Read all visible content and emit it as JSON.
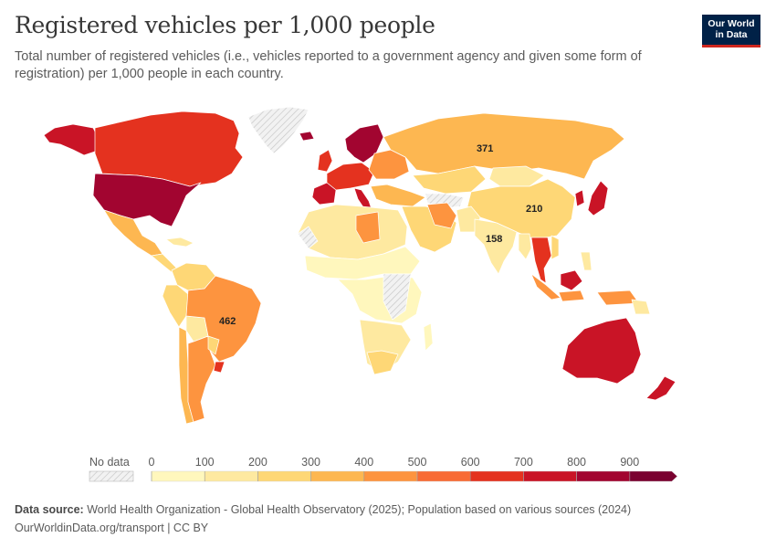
{
  "header": {
    "title": "Registered vehicles per 1,000 people",
    "subtitle": "Total number of registered vehicles (i.e., vehicles reported to a government agency and given some form of registration) per 1,000 people in each country."
  },
  "logo": {
    "line1": "Our World",
    "line2": "in Data"
  },
  "map": {
    "annotations": [
      {
        "country": "Russia",
        "value": "371"
      },
      {
        "country": "China",
        "value": "210"
      },
      {
        "country": "India",
        "value": "158"
      },
      {
        "country": "Brazil",
        "value": "462"
      }
    ]
  },
  "legend": {
    "no_data_label": "No data",
    "ticks": [
      "0",
      "100",
      "200",
      "300",
      "400",
      "500",
      "600",
      "700",
      "800",
      "900"
    ],
    "colors": [
      "#fff7bd",
      "#fee9a0",
      "#fed776",
      "#fdb751",
      "#fd943f",
      "#f86b34",
      "#e4321f",
      "#c91426",
      "#a20530",
      "#7a0230"
    ]
  },
  "footer": {
    "source_label": "Data source:",
    "source_text": "World Health Organization - Global Health Observatory (2025); Population based on various sources (2024)",
    "link_text": "OurWorldinData.org/transport | CC BY"
  }
}
